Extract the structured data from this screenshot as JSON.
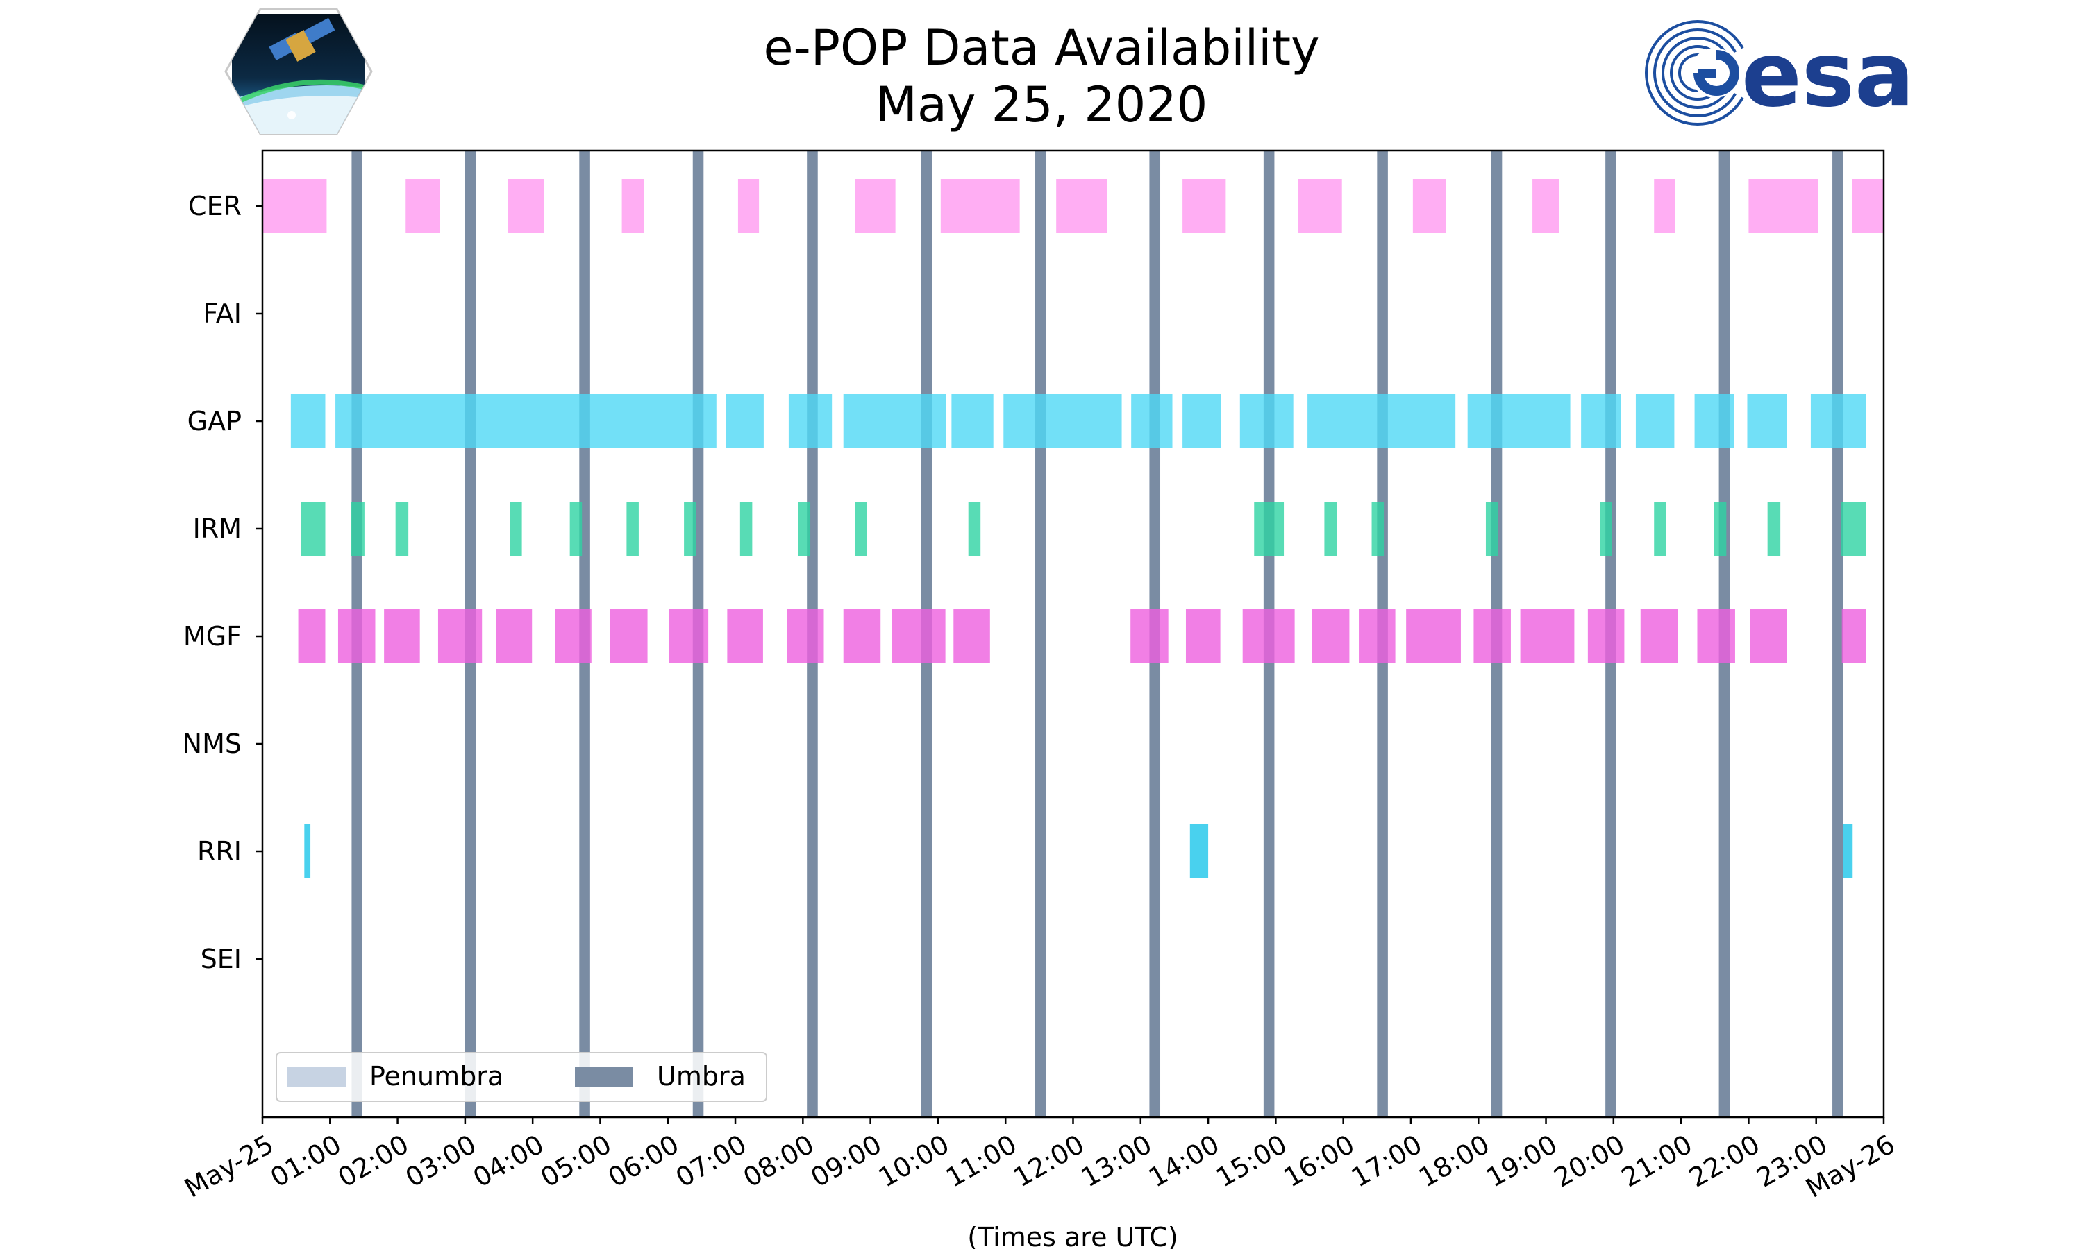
{
  "chart_data": {
    "type": "timeline",
    "title": "e-POP Data Availability",
    "subtitle": "May 25, 2020",
    "xlabel": "(Times are UTC)",
    "x_unit": "hours UTC",
    "xlim": [
      0,
      24
    ],
    "x_tick_labels": [
      "May-25",
      "01:00",
      "02:00",
      "03:00",
      "04:00",
      "05:00",
      "06:00",
      "07:00",
      "08:00",
      "09:00",
      "10:00",
      "11:00",
      "12:00",
      "13:00",
      "14:00",
      "15:00",
      "16:00",
      "17:00",
      "18:00",
      "19:00",
      "20:00",
      "21:00",
      "22:00",
      "23:00",
      "May-26"
    ],
    "categories": [
      "CER",
      "FAI",
      "GAP",
      "IRM",
      "MGF",
      "NMS",
      "RRI",
      "SEI"
    ],
    "legend": {
      "placement": "lower-left",
      "entries": [
        {
          "label": "Penumbra",
          "color": "#c7d3e3"
        },
        {
          "label": "Umbra",
          "color": "#7a8ca3"
        }
      ]
    },
    "umbra_intervals": [
      [
        1.32,
        1.48
      ],
      [
        3.0,
        3.16
      ],
      [
        4.69,
        4.85
      ],
      [
        6.37,
        6.53
      ],
      [
        8.06,
        8.22
      ],
      [
        9.75,
        9.91
      ],
      [
        11.44,
        11.6
      ],
      [
        13.13,
        13.29
      ],
      [
        14.82,
        14.98
      ],
      [
        16.5,
        16.66
      ],
      [
        18.19,
        18.35
      ],
      [
        19.88,
        20.04
      ],
      [
        21.56,
        21.72
      ],
      [
        23.24,
        23.4
      ]
    ],
    "series": [
      {
        "name": "CER",
        "color": "#ff9af0",
        "intervals": [
          [
            0.0,
            0.95
          ],
          [
            2.12,
            2.63
          ],
          [
            3.63,
            4.17
          ],
          [
            5.32,
            5.65
          ],
          [
            7.04,
            7.35
          ],
          [
            8.77,
            9.37
          ],
          [
            10.04,
            11.21
          ],
          [
            11.75,
            12.5
          ],
          [
            13.62,
            14.26
          ],
          [
            15.33,
            15.98
          ],
          [
            17.03,
            17.52
          ],
          [
            18.8,
            19.2
          ],
          [
            20.6,
            20.91
          ],
          [
            22.0,
            23.03
          ],
          [
            23.53,
            24.0
          ]
        ]
      },
      {
        "name": "FAI",
        "color": "#ff9af0",
        "intervals": []
      },
      {
        "name": "GAP",
        "color": "#4fd8f5",
        "intervals": [
          [
            0.42,
            0.93
          ],
          [
            1.08,
            6.72
          ],
          [
            6.86,
            7.42
          ],
          [
            7.79,
            8.43
          ],
          [
            8.6,
            10.12
          ],
          [
            10.2,
            10.82
          ],
          [
            10.97,
            12.72
          ],
          [
            12.86,
            13.47
          ],
          [
            13.62,
            14.19
          ],
          [
            14.47,
            15.26
          ],
          [
            15.47,
            17.66
          ],
          [
            17.84,
            19.36
          ],
          [
            19.52,
            20.11
          ],
          [
            20.33,
            20.9
          ],
          [
            21.2,
            21.78
          ],
          [
            21.98,
            22.57
          ],
          [
            22.92,
            23.74
          ]
        ]
      },
      {
        "name": "IRM",
        "color": "#2ed3a3",
        "intervals": [
          [
            0.57,
            0.93
          ],
          [
            1.31,
            1.51
          ],
          [
            1.97,
            2.16
          ],
          [
            3.66,
            3.84
          ],
          [
            4.55,
            4.73
          ],
          [
            5.39,
            5.57
          ],
          [
            6.24,
            6.42
          ],
          [
            7.07,
            7.25
          ],
          [
            7.93,
            8.11
          ],
          [
            8.77,
            8.95
          ],
          [
            10.45,
            10.63
          ],
          [
            14.68,
            15.12
          ],
          [
            15.72,
            15.91
          ],
          [
            16.42,
            16.6
          ],
          [
            18.11,
            18.29
          ],
          [
            19.8,
            19.98
          ],
          [
            20.6,
            20.78
          ],
          [
            21.49,
            21.67
          ],
          [
            22.28,
            22.47
          ],
          [
            23.37,
            23.74
          ]
        ]
      },
      {
        "name": "MGF",
        "color": "#ee5fde",
        "intervals": [
          [
            0.53,
            0.93
          ],
          [
            1.12,
            1.67
          ],
          [
            1.8,
            2.33
          ],
          [
            2.6,
            3.25
          ],
          [
            3.46,
            3.99
          ],
          [
            4.33,
            4.87
          ],
          [
            5.14,
            5.7
          ],
          [
            6.02,
            6.6
          ],
          [
            6.88,
            7.41
          ],
          [
            7.77,
            8.31
          ],
          [
            8.6,
            9.15
          ],
          [
            9.32,
            10.11
          ],
          [
            10.23,
            10.77
          ],
          [
            12.85,
            13.41
          ],
          [
            13.67,
            14.18
          ],
          [
            14.51,
            15.28
          ],
          [
            15.54,
            16.09
          ],
          [
            16.23,
            16.77
          ],
          [
            16.93,
            17.74
          ],
          [
            17.93,
            18.48
          ],
          [
            18.62,
            19.42
          ],
          [
            19.62,
            20.16
          ],
          [
            20.4,
            20.95
          ],
          [
            21.24,
            21.8
          ],
          [
            22.02,
            22.57
          ],
          [
            23.38,
            23.74
          ]
        ]
      },
      {
        "name": "NMS",
        "color": "#ee5fde",
        "intervals": []
      },
      {
        "name": "RRI",
        "color": "#1bc6ea",
        "intervals": [
          [
            0.62,
            0.71
          ],
          [
            13.73,
            14.0
          ],
          [
            23.4,
            23.54
          ]
        ]
      },
      {
        "name": "SEI",
        "color": "#1bc6ea",
        "intervals": []
      }
    ]
  }
}
